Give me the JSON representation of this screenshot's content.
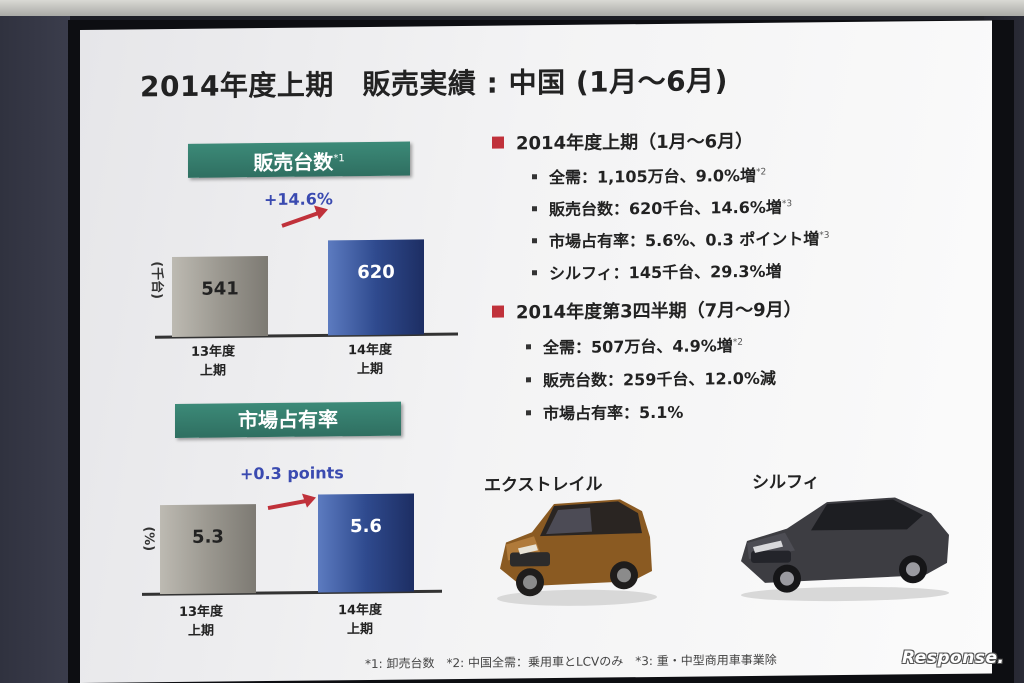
{
  "title": "2014年度上期　販売実績 : 中国 (1月～6月)",
  "sales_chart": {
    "label": "販売台数",
    "label_note": "*1",
    "unit": "(千台)",
    "change": "+14.6%"
  },
  "share_chart": {
    "label": "市場占有率",
    "unit": "(%)",
    "change": "+0.3 points"
  },
  "chart_data": [
    {
      "type": "bar",
      "categories": [
        "13年度 上期",
        "14年度 上期"
      ],
      "values": [
        541,
        620
      ],
      "title": "販売台数",
      "ylabel": "(千台)",
      "bar_colors": [
        "#9b9890",
        "#2f4a8e"
      ]
    },
    {
      "type": "bar",
      "categories": [
        "13年度 上期",
        "14年度 上期"
      ],
      "values": [
        5.3,
        5.6
      ],
      "title": "市場占有率",
      "ylabel": "(%)",
      "bar_colors": [
        "#9b9890",
        "#2f4a8e"
      ]
    }
  ],
  "categories": {
    "c1_line1": "13年度",
    "c1_line2": "上期",
    "c2_line1": "14年度",
    "c2_line2": "上期"
  },
  "section1": {
    "heading": "2014年度上期（1月～6月）",
    "items": [
      {
        "text": "全需：1,105万台、9.0%増",
        "note": "*2"
      },
      {
        "text": "販売台数：620千台、14.6%増",
        "note": "*3"
      },
      {
        "text": "市場占有率：5.6%、0.3 ポイント増",
        "note": "*3"
      },
      {
        "text": "シルフィ：145千台、29.3%増",
        "note": ""
      }
    ]
  },
  "section2": {
    "heading": "2014年度第3四半期（7月～9月）",
    "items": [
      {
        "text": "全需：507万台、4.9%増",
        "note": "*2"
      },
      {
        "text": "販売台数：259千台、12.0%減",
        "note": ""
      },
      {
        "text": "市場占有率：5.1%",
        "note": ""
      }
    ]
  },
  "cars": {
    "car1": "エクストレイル",
    "car2": "シルフィ"
  },
  "footnote": "*1: 卸売台数　*2: 中国全需：乗用車とLCVのみ　*3: 重・中型商用車事業除",
  "watermark": "Response.",
  "colors": {
    "label_green": "#3c8a78",
    "bar_gray": "#9b9890",
    "bar_blue": "#2f4a8e",
    "arrow_red": "#c0313a",
    "change_blue": "#3a4ab0",
    "section_marker": "#c0313a"
  }
}
